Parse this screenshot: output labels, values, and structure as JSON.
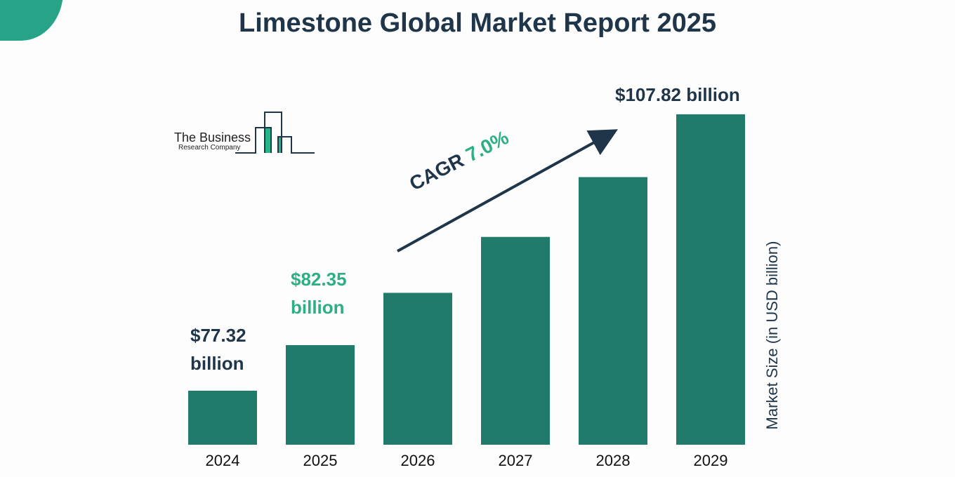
{
  "chart_data": {
    "type": "bar",
    "title": "Limestone Global Market Report 2025",
    "categories": [
      "2024",
      "2025",
      "2026",
      "2027",
      "2028",
      "2029"
    ],
    "values": [
      77.32,
      82.35,
      88.12,
      94.29,
      100.89,
      107.82
    ],
    "data_labels": {
      "2024": "$77.32 billion",
      "2025": "$82.35 billion",
      "2029": "$107.82 billion"
    },
    "label_2024": [
      "$77.32",
      "billion"
    ],
    "label_2025": [
      "$82.35",
      "billion"
    ],
    "label_2029": "$107.82 billion",
    "ylabel": "Market Size (in USD billion)",
    "xlabel": "",
    "annotation": {
      "prefix": "CAGR ",
      "value": "7.0%"
    },
    "grid": false,
    "colors": {
      "bar": "#207b6b",
      "accent": "#2eae85",
      "text": "#1f3549"
    }
  },
  "logo": {
    "line1": "The Business",
    "line2": "Research Company"
  }
}
